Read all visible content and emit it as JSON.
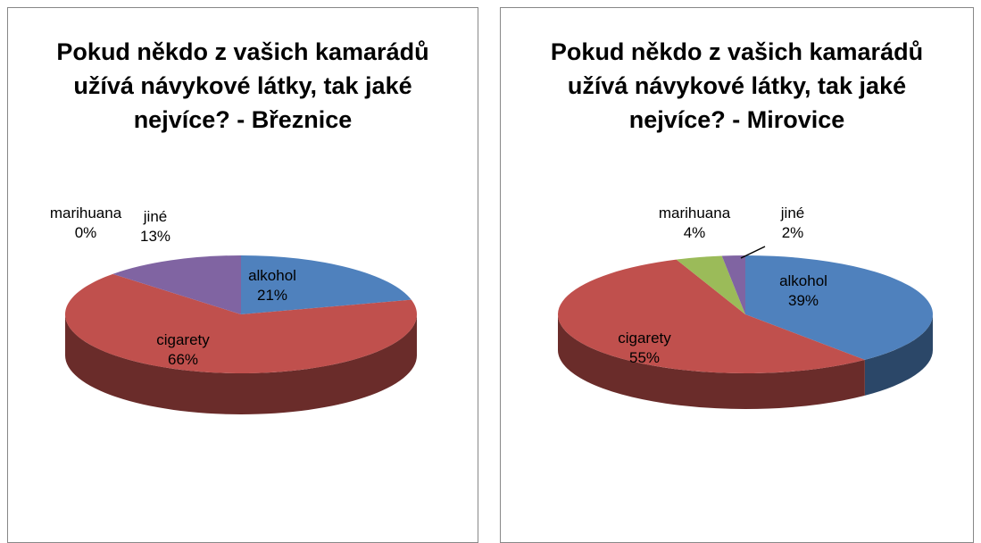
{
  "chart_data": [
    {
      "type": "pie3d",
      "title": "Pokud někdo z vašich kamarádů užívá návykové látky, tak jaké nejvíce? - Březnice",
      "categories": [
        "alkohol",
        "cigarety",
        "marihuana",
        "jiné"
      ],
      "values": [
        21,
        66,
        0,
        13
      ],
      "value_labels": [
        "21%",
        "66%",
        "0%",
        "13%"
      ],
      "colors": [
        "#4f81bd",
        "#c0504d",
        "#9bbb59",
        "#8064a2"
      ]
    },
    {
      "type": "pie3d",
      "title": "Pokud někdo z vašich kamarádů užívá návykové látky, tak jaké nejvíce? - Mirovice",
      "categories": [
        "alkohol",
        "cigarety",
        "marihuana",
        "jiné"
      ],
      "values": [
        39,
        55,
        4,
        2
      ],
      "value_labels": [
        "39%",
        "55%",
        "4%",
        "2%"
      ],
      "colors": [
        "#4f81bd",
        "#c0504d",
        "#9bbb59",
        "#8064a2"
      ]
    }
  ]
}
